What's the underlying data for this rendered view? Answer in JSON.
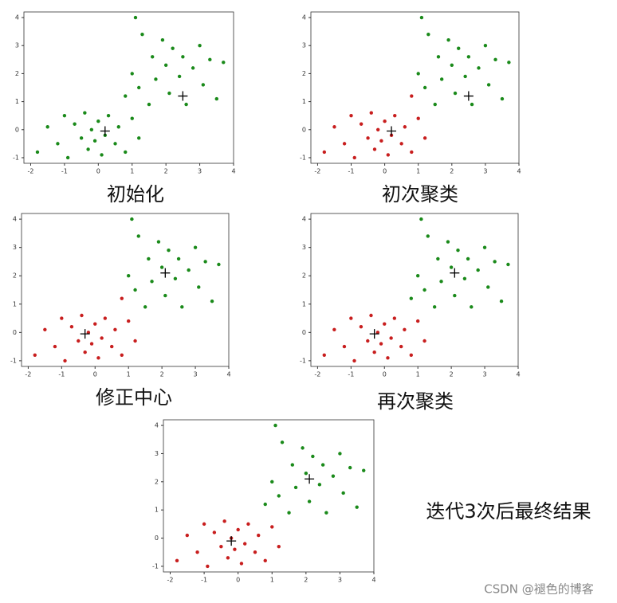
{
  "chart_data": [
    {
      "type": "scatter",
      "caption": "初始化",
      "xlim": [
        -2.2,
        4
      ],
      "ylim": [
        -1.2,
        4.2
      ],
      "xticks": [
        -2,
        -1,
        0,
        1,
        2,
        3,
        4
      ],
      "yticks": [
        -1,
        0,
        1,
        2,
        3,
        4
      ],
      "series": [
        {
          "color": "#1a8a1a",
          "marker": "dot",
          "x": [
            -1.8,
            -1.5,
            -1.2,
            -1.0,
            -0.9,
            -0.7,
            -0.5,
            -0.4,
            -0.3,
            -0.2,
            -0.1,
            0.0,
            0.1,
            0.2,
            0.3,
            0.5,
            0.6,
            0.8,
            1.0,
            1.2,
            0.8,
            1.0,
            1.2,
            1.3,
            1.5,
            1.6,
            1.7,
            1.9,
            2.0,
            2.1,
            2.2,
            2.4,
            2.5,
            2.6,
            2.8,
            3.0,
            3.1,
            3.3,
            3.5,
            3.7,
            1.1
          ],
          "y": [
            -0.8,
            0.1,
            -0.5,
            0.5,
            -1.0,
            0.2,
            -0.3,
            0.6,
            -0.7,
            0.0,
            -0.4,
            0.3,
            -0.9,
            -0.2,
            0.5,
            -0.5,
            0.1,
            -0.8,
            0.4,
            -0.3,
            1.2,
            2.0,
            1.5,
            3.4,
            0.9,
            2.6,
            1.8,
            3.2,
            2.3,
            1.3,
            2.9,
            1.9,
            2.6,
            0.9,
            2.2,
            3.0,
            1.6,
            2.5,
            1.1,
            2.4,
            4.0
          ]
        },
        {
          "color": "#000000",
          "marker": "plus",
          "x": [
            0.2,
            2.5
          ],
          "y": [
            -0.05,
            1.2
          ]
        }
      ]
    },
    {
      "type": "scatter",
      "caption": "初次聚类",
      "xlim": [
        -2.2,
        4
      ],
      "ylim": [
        -1.2,
        4.2
      ],
      "xticks": [
        -2,
        -1,
        0,
        1,
        2,
        3,
        4
      ],
      "yticks": [
        -1,
        0,
        1,
        2,
        3,
        4
      ],
      "series": [
        {
          "color": "#c81e1e",
          "marker": "dot",
          "x": [
            -1.8,
            -1.5,
            -1.2,
            -1.0,
            -0.9,
            -0.7,
            -0.5,
            -0.4,
            -0.3,
            -0.2,
            -0.1,
            0.0,
            0.1,
            0.2,
            0.3,
            0.5,
            0.6,
            0.8,
            1.0,
            1.2,
            0.8
          ],
          "y": [
            -0.8,
            0.1,
            -0.5,
            0.5,
            -1.0,
            0.2,
            -0.3,
            0.6,
            -0.7,
            0.0,
            -0.4,
            0.3,
            -0.9,
            -0.2,
            0.5,
            -0.5,
            0.1,
            -0.8,
            0.4,
            -0.3,
            1.2
          ]
        },
        {
          "color": "#1a8a1a",
          "marker": "dot",
          "x": [
            1.0,
            1.2,
            1.3,
            1.5,
            1.6,
            1.7,
            1.9,
            2.0,
            2.1,
            2.2,
            2.4,
            2.5,
            2.6,
            2.8,
            3.0,
            3.1,
            3.3,
            3.5,
            3.7,
            1.1
          ],
          "y": [
            2.0,
            1.5,
            3.4,
            0.9,
            2.6,
            1.8,
            3.2,
            2.3,
            1.3,
            2.9,
            1.9,
            2.6,
            0.9,
            2.2,
            3.0,
            1.6,
            2.5,
            1.1,
            2.4,
            4.0
          ]
        },
        {
          "color": "#000000",
          "marker": "plus",
          "x": [
            0.2,
            2.5
          ],
          "y": [
            -0.05,
            1.2
          ]
        }
      ]
    },
    {
      "type": "scatter",
      "caption": "修正中心",
      "xlim": [
        -2.2,
        4
      ],
      "ylim": [
        -1.2,
        4.2
      ],
      "xticks": [
        -2,
        -1,
        0,
        1,
        2,
        3,
        4
      ],
      "yticks": [
        -1,
        0,
        1,
        2,
        3,
        4
      ],
      "series": [
        {
          "color": "#c81e1e",
          "marker": "dot",
          "x": [
            -1.8,
            -1.5,
            -1.2,
            -1.0,
            -0.9,
            -0.7,
            -0.5,
            -0.4,
            -0.3,
            -0.2,
            -0.1,
            0.0,
            0.1,
            0.2,
            0.3,
            0.5,
            0.6,
            0.8,
            1.0,
            1.2,
            0.8
          ],
          "y": [
            -0.8,
            0.1,
            -0.5,
            0.5,
            -1.0,
            0.2,
            -0.3,
            0.6,
            -0.7,
            0.0,
            -0.4,
            0.3,
            -0.9,
            -0.2,
            0.5,
            -0.5,
            0.1,
            -0.8,
            0.4,
            -0.3,
            1.2
          ]
        },
        {
          "color": "#1a8a1a",
          "marker": "dot",
          "x": [
            1.0,
            1.2,
            1.3,
            1.5,
            1.6,
            1.7,
            1.9,
            2.0,
            2.1,
            2.2,
            2.4,
            2.5,
            2.6,
            2.8,
            3.0,
            3.1,
            3.3,
            3.5,
            3.7,
            1.1
          ],
          "y": [
            2.0,
            1.5,
            3.4,
            0.9,
            2.6,
            1.8,
            3.2,
            2.3,
            1.3,
            2.9,
            1.9,
            2.6,
            0.9,
            2.2,
            3.0,
            1.6,
            2.5,
            1.1,
            2.4,
            4.0
          ]
        },
        {
          "color": "#000000",
          "marker": "plus",
          "x": [
            -0.3,
            2.1
          ],
          "y": [
            -0.05,
            2.1
          ]
        }
      ]
    },
    {
      "type": "scatter",
      "caption": "再次聚类",
      "xlim": [
        -2.2,
        4
      ],
      "ylim": [
        -1.2,
        4.2
      ],
      "xticks": [
        -2,
        -1,
        0,
        1,
        2,
        3,
        4
      ],
      "yticks": [
        -1,
        0,
        1,
        2,
        3,
        4
      ],
      "series": [
        {
          "color": "#c81e1e",
          "marker": "dot",
          "x": [
            -1.8,
            -1.5,
            -1.2,
            -1.0,
            -0.9,
            -0.7,
            -0.5,
            -0.4,
            -0.3,
            -0.2,
            -0.1,
            0.0,
            0.1,
            0.2,
            0.3,
            0.5,
            0.6,
            0.8,
            1.0,
            1.2
          ],
          "y": [
            -0.8,
            0.1,
            -0.5,
            0.5,
            -1.0,
            0.2,
            -0.3,
            0.6,
            -0.7,
            0.0,
            -0.4,
            0.3,
            -0.9,
            -0.2,
            0.5,
            -0.5,
            0.1,
            -0.8,
            0.4,
            -0.3
          ]
        },
        {
          "color": "#1a8a1a",
          "marker": "dot",
          "x": [
            0.8,
            1.0,
            1.2,
            1.3,
            1.5,
            1.6,
            1.7,
            1.9,
            2.0,
            2.1,
            2.2,
            2.4,
            2.5,
            2.6,
            2.8,
            3.0,
            3.1,
            3.3,
            3.5,
            3.7,
            1.1
          ],
          "y": [
            1.2,
            2.0,
            1.5,
            3.4,
            0.9,
            2.6,
            1.8,
            3.2,
            2.3,
            1.3,
            2.9,
            1.9,
            2.6,
            0.9,
            2.2,
            3.0,
            1.6,
            2.5,
            1.1,
            2.4,
            4.0
          ]
        },
        {
          "color": "#000000",
          "marker": "plus",
          "x": [
            -0.3,
            2.1
          ],
          "y": [
            -0.05,
            2.1
          ]
        }
      ]
    },
    {
      "type": "scatter",
      "annotation": "迭代3次后最终结果",
      "xlim": [
        -2.2,
        4
      ],
      "ylim": [
        -1.2,
        4.2
      ],
      "xticks": [
        -2,
        -1,
        0,
        1,
        2,
        3,
        4
      ],
      "yticks": [
        -1,
        0,
        1,
        2,
        3,
        4
      ],
      "series": [
        {
          "color": "#c81e1e",
          "marker": "dot",
          "x": [
            -1.8,
            -1.5,
            -1.2,
            -1.0,
            -0.9,
            -0.7,
            -0.5,
            -0.4,
            -0.3,
            -0.2,
            -0.1,
            0.0,
            0.1,
            0.2,
            0.3,
            0.5,
            0.6,
            0.8,
            1.0,
            1.2
          ],
          "y": [
            -0.8,
            0.1,
            -0.5,
            0.5,
            -1.0,
            0.2,
            -0.3,
            0.6,
            -0.7,
            0.0,
            -0.4,
            0.3,
            -0.9,
            -0.2,
            0.5,
            -0.5,
            0.1,
            -0.8,
            0.4,
            -0.3
          ]
        },
        {
          "color": "#1a8a1a",
          "marker": "dot",
          "x": [
            0.8,
            1.0,
            1.2,
            1.3,
            1.5,
            1.6,
            1.7,
            1.9,
            2.0,
            2.1,
            2.2,
            2.4,
            2.5,
            2.6,
            2.8,
            3.0,
            3.1,
            3.3,
            3.5,
            3.7,
            1.1
          ],
          "y": [
            1.2,
            2.0,
            1.5,
            3.4,
            0.9,
            2.6,
            1.8,
            3.2,
            2.3,
            1.3,
            2.9,
            1.9,
            2.6,
            0.9,
            2.2,
            3.0,
            1.6,
            2.5,
            1.1,
            2.4,
            4.0
          ]
        },
        {
          "color": "#000000",
          "marker": "plus",
          "x": [
            -0.2,
            2.1
          ],
          "y": [
            -0.1,
            2.1
          ]
        }
      ]
    }
  ],
  "watermark": "CSDN @褪色的博客"
}
